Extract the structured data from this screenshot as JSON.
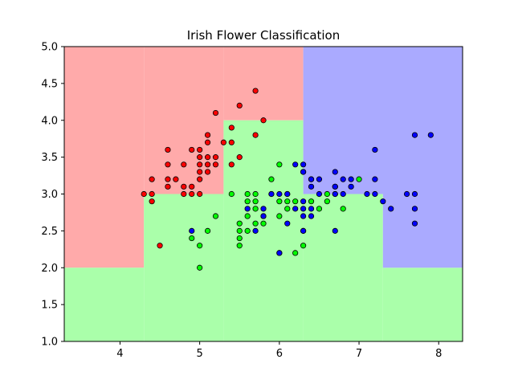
{
  "chart_data": {
    "type": "scatter",
    "title": "Irish Flower Classification",
    "xlabel": "",
    "ylabel": "",
    "xlim": [
      3.3,
      8.3
    ],
    "ylim": [
      1.0,
      5.0
    ],
    "x_ticks": [
      "4",
      "5",
      "6",
      "7",
      "8"
    ],
    "y_ticks": [
      "1.0",
      "1.5",
      "2.0",
      "2.5",
      "3.0",
      "3.5",
      "4.0",
      "4.5",
      "5.0"
    ],
    "grid": false,
    "legend": "none",
    "region_colors": {
      "class0": "#ffaaaa",
      "class1": "#aaffaa",
      "class2": "#aaaaff"
    },
    "point_colors": {
      "class0": "#ff0000",
      "class1": "#00ff00",
      "class2": "#0000ff"
    },
    "regions": [
      {
        "class": 0,
        "x": [
          3.3,
          4.3
        ],
        "y": [
          2.0,
          5.0
        ]
      },
      {
        "class": 0,
        "x": [
          4.3,
          5.3
        ],
        "y": [
          3.0,
          5.0
        ]
      },
      {
        "class": 0,
        "x": [
          5.3,
          6.3
        ],
        "y": [
          4.0,
          5.0
        ]
      },
      {
        "class": 1,
        "x": [
          3.3,
          4.3
        ],
        "y": [
          1.0,
          2.0
        ]
      },
      {
        "class": 1,
        "x": [
          4.3,
          5.3
        ],
        "y": [
          1.0,
          3.0
        ]
      },
      {
        "class": 1,
        "x": [
          5.3,
          6.3
        ],
        "y": [
          1.0,
          4.0
        ]
      },
      {
        "class": 1,
        "x": [
          6.3,
          7.3
        ],
        "y": [
          1.0,
          3.0
        ]
      },
      {
        "class": 1,
        "x": [
          7.3,
          8.3
        ],
        "y": [
          1.0,
          2.0
        ]
      },
      {
        "class": 2,
        "x": [
          6.3,
          8.3
        ],
        "y": [
          3.0,
          5.0
        ]
      },
      {
        "class": 2,
        "x": [
          7.3,
          8.3
        ],
        "y": [
          2.0,
          3.0
        ]
      }
    ],
    "series": [
      {
        "class": 0,
        "points": [
          [
            4.3,
            3.0
          ],
          [
            4.4,
            2.9
          ],
          [
            4.4,
            3.0
          ],
          [
            4.4,
            3.2
          ],
          [
            4.5,
            2.3
          ],
          [
            4.6,
            3.1
          ],
          [
            4.6,
            3.2
          ],
          [
            4.6,
            3.4
          ],
          [
            4.6,
            3.6
          ],
          [
            4.7,
            3.2
          ],
          [
            4.8,
            3.0
          ],
          [
            4.8,
            3.1
          ],
          [
            4.8,
            3.4
          ],
          [
            4.9,
            3.0
          ],
          [
            4.9,
            3.1
          ],
          [
            4.9,
            3.6
          ],
          [
            5.0,
            3.0
          ],
          [
            5.0,
            3.2
          ],
          [
            5.0,
            3.3
          ],
          [
            5.0,
            3.4
          ],
          [
            5.0,
            3.5
          ],
          [
            5.0,
            3.6
          ],
          [
            5.1,
            3.3
          ],
          [
            5.1,
            3.4
          ],
          [
            5.1,
            3.5
          ],
          [
            5.1,
            3.7
          ],
          [
            5.1,
            3.8
          ],
          [
            5.2,
            3.4
          ],
          [
            5.2,
            3.5
          ],
          [
            5.2,
            4.1
          ],
          [
            5.3,
            3.7
          ],
          [
            5.4,
            3.4
          ],
          [
            5.4,
            3.7
          ],
          [
            5.4,
            3.9
          ],
          [
            5.5,
            3.5
          ],
          [
            5.5,
            4.2
          ],
          [
            5.7,
            3.8
          ],
          [
            5.7,
            4.4
          ],
          [
            5.8,
            4.0
          ]
        ]
      },
      {
        "class": 1,
        "points": [
          [
            4.9,
            2.4
          ],
          [
            5.0,
            2.0
          ],
          [
            5.0,
            2.3
          ],
          [
            5.1,
            2.5
          ],
          [
            5.2,
            2.7
          ],
          [
            5.4,
            3.0
          ],
          [
            5.5,
            2.3
          ],
          [
            5.5,
            2.4
          ],
          [
            5.5,
            2.5
          ],
          [
            5.5,
            2.6
          ],
          [
            5.6,
            2.5
          ],
          [
            5.6,
            2.7
          ],
          [
            5.6,
            2.9
          ],
          [
            5.6,
            3.0
          ],
          [
            5.7,
            2.6
          ],
          [
            5.7,
            2.8
          ],
          [
            5.7,
            2.9
          ],
          [
            5.7,
            3.0
          ],
          [
            5.8,
            2.6
          ],
          [
            5.8,
            2.7
          ],
          [
            5.9,
            3.0
          ],
          [
            5.9,
            3.2
          ],
          [
            6.0,
            2.2
          ],
          [
            6.0,
            2.7
          ],
          [
            6.0,
            2.9
          ],
          [
            6.0,
            3.4
          ],
          [
            6.1,
            2.8
          ],
          [
            6.1,
            2.9
          ],
          [
            6.1,
            3.0
          ],
          [
            6.2,
            2.2
          ],
          [
            6.2,
            2.9
          ],
          [
            6.3,
            2.3
          ],
          [
            6.3,
            2.5
          ],
          [
            6.3,
            3.3
          ],
          [
            6.4,
            2.9
          ],
          [
            6.4,
            3.2
          ],
          [
            6.5,
            2.8
          ],
          [
            6.6,
            2.9
          ],
          [
            6.6,
            3.0
          ],
          [
            6.7,
            3.0
          ],
          [
            6.7,
            3.1
          ],
          [
            6.8,
            2.8
          ],
          [
            7.0,
            3.2
          ]
        ]
      },
      {
        "class": 2,
        "points": [
          [
            4.9,
            2.5
          ],
          [
            5.6,
            2.8
          ],
          [
            5.7,
            2.5
          ],
          [
            5.8,
            2.7
          ],
          [
            5.8,
            2.8
          ],
          [
            5.9,
            3.0
          ],
          [
            6.0,
            2.2
          ],
          [
            6.0,
            3.0
          ],
          [
            6.1,
            2.6
          ],
          [
            6.1,
            3.0
          ],
          [
            6.2,
            2.8
          ],
          [
            6.2,
            3.4
          ],
          [
            6.3,
            2.5
          ],
          [
            6.3,
            2.7
          ],
          [
            6.3,
            2.8
          ],
          [
            6.3,
            2.9
          ],
          [
            6.3,
            3.3
          ],
          [
            6.3,
            3.4
          ],
          [
            6.4,
            2.7
          ],
          [
            6.4,
            2.8
          ],
          [
            6.4,
            3.1
          ],
          [
            6.4,
            3.2
          ],
          [
            6.5,
            3.0
          ],
          [
            6.5,
            3.2
          ],
          [
            6.7,
            2.5
          ],
          [
            6.7,
            3.0
          ],
          [
            6.7,
            3.1
          ],
          [
            6.7,
            3.3
          ],
          [
            6.8,
            3.0
          ],
          [
            6.8,
            3.2
          ],
          [
            6.9,
            3.1
          ],
          [
            6.9,
            3.2
          ],
          [
            7.1,
            3.0
          ],
          [
            7.2,
            3.0
          ],
          [
            7.2,
            3.2
          ],
          [
            7.2,
            3.6
          ],
          [
            7.3,
            2.9
          ],
          [
            7.4,
            2.8
          ],
          [
            7.6,
            3.0
          ],
          [
            7.7,
            2.6
          ],
          [
            7.7,
            2.8
          ],
          [
            7.7,
            3.0
          ],
          [
            7.7,
            3.8
          ],
          [
            7.9,
            3.8
          ]
        ]
      }
    ]
  }
}
